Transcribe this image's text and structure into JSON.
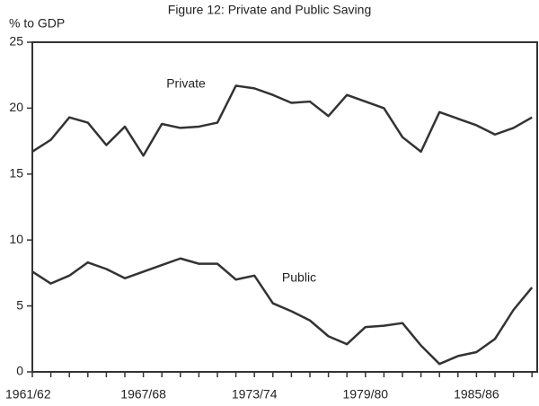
{
  "chart_data": {
    "type": "line",
    "title": "Figure 12: Private and Public Saving",
    "y_label": "% to GDP",
    "categories": [
      "1961/62",
      null,
      null,
      null,
      null,
      null,
      "1967/68",
      null,
      null,
      null,
      null,
      null,
      "1973/74",
      null,
      null,
      null,
      null,
      null,
      "1979/80",
      null,
      null,
      null,
      null,
      null,
      "1985/86",
      null,
      null,
      null
    ],
    "series": [
      {
        "name": "Private",
        "color": "#333333",
        "values": [
          16.7,
          17.6,
          19.3,
          18.9,
          17.2,
          18.6,
          16.4,
          18.8,
          18.5,
          18.6,
          18.9,
          21.7,
          21.5,
          21.0,
          20.4,
          20.5,
          19.4,
          21.0,
          20.5,
          20.0,
          17.8,
          16.7,
          19.7,
          19.2,
          18.7,
          18.0,
          18.5,
          19.3
        ]
      },
      {
        "name": "Public",
        "color": "#333333",
        "values": [
          7.6,
          6.7,
          7.3,
          8.3,
          7.8,
          7.1,
          7.6,
          8.1,
          8.6,
          8.2,
          8.2,
          7.0,
          7.3,
          5.2,
          4.6,
          3.9,
          2.7,
          2.1,
          3.4,
          3.5,
          3.7,
          2.0,
          0.6,
          1.2,
          1.5,
          2.5,
          4.7,
          6.4
        ]
      }
    ],
    "ylim": [
      0,
      25
    ],
    "yticks": [
      0,
      5,
      10,
      15,
      20,
      25
    ],
    "grid": false
  }
}
